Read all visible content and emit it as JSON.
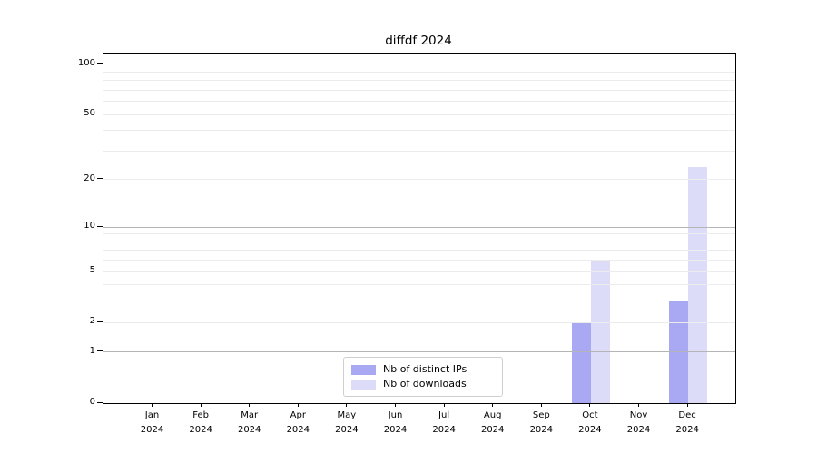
{
  "chart_data": {
    "type": "bar",
    "title": "diffdf 2024",
    "scale": "log1p",
    "categories": [
      "Jan",
      "Feb",
      "Mar",
      "Apr",
      "May",
      "Jun",
      "Jul",
      "Aug",
      "Sep",
      "Oct",
      "Nov",
      "Dec"
    ],
    "category_year": "2024",
    "series": [
      {
        "name": "Nb of distinct IPs",
        "color": "#a8a8f3",
        "values": [
          0,
          0,
          0,
          0,
          0,
          0,
          0,
          0,
          0,
          2,
          0,
          3
        ]
      },
      {
        "name": "Nb of downloads",
        "color": "#dcdcf9",
        "values": [
          0,
          0,
          0,
          0,
          0,
          0,
          0,
          0,
          0,
          6,
          0,
          24
        ]
      }
    ],
    "y_major_ticks": [
      0,
      1,
      2,
      5,
      10,
      20,
      50,
      100
    ],
    "y_minor_gridlines": [
      3,
      4,
      6,
      7,
      8,
      9,
      30,
      40,
      60,
      70,
      80,
      90
    ],
    "decade_gridlines": [
      1,
      10,
      100
    ],
    "ylim": [
      0,
      116
    ],
    "grid": "horizontal",
    "legend_position": "lower center"
  },
  "colors": {
    "background": "#ffffff",
    "axis": "#000000",
    "grid_decade": "#b5b5b5",
    "grid_minor": "#ececec",
    "legend_border": "#cfcfcf",
    "text": "#000000"
  }
}
